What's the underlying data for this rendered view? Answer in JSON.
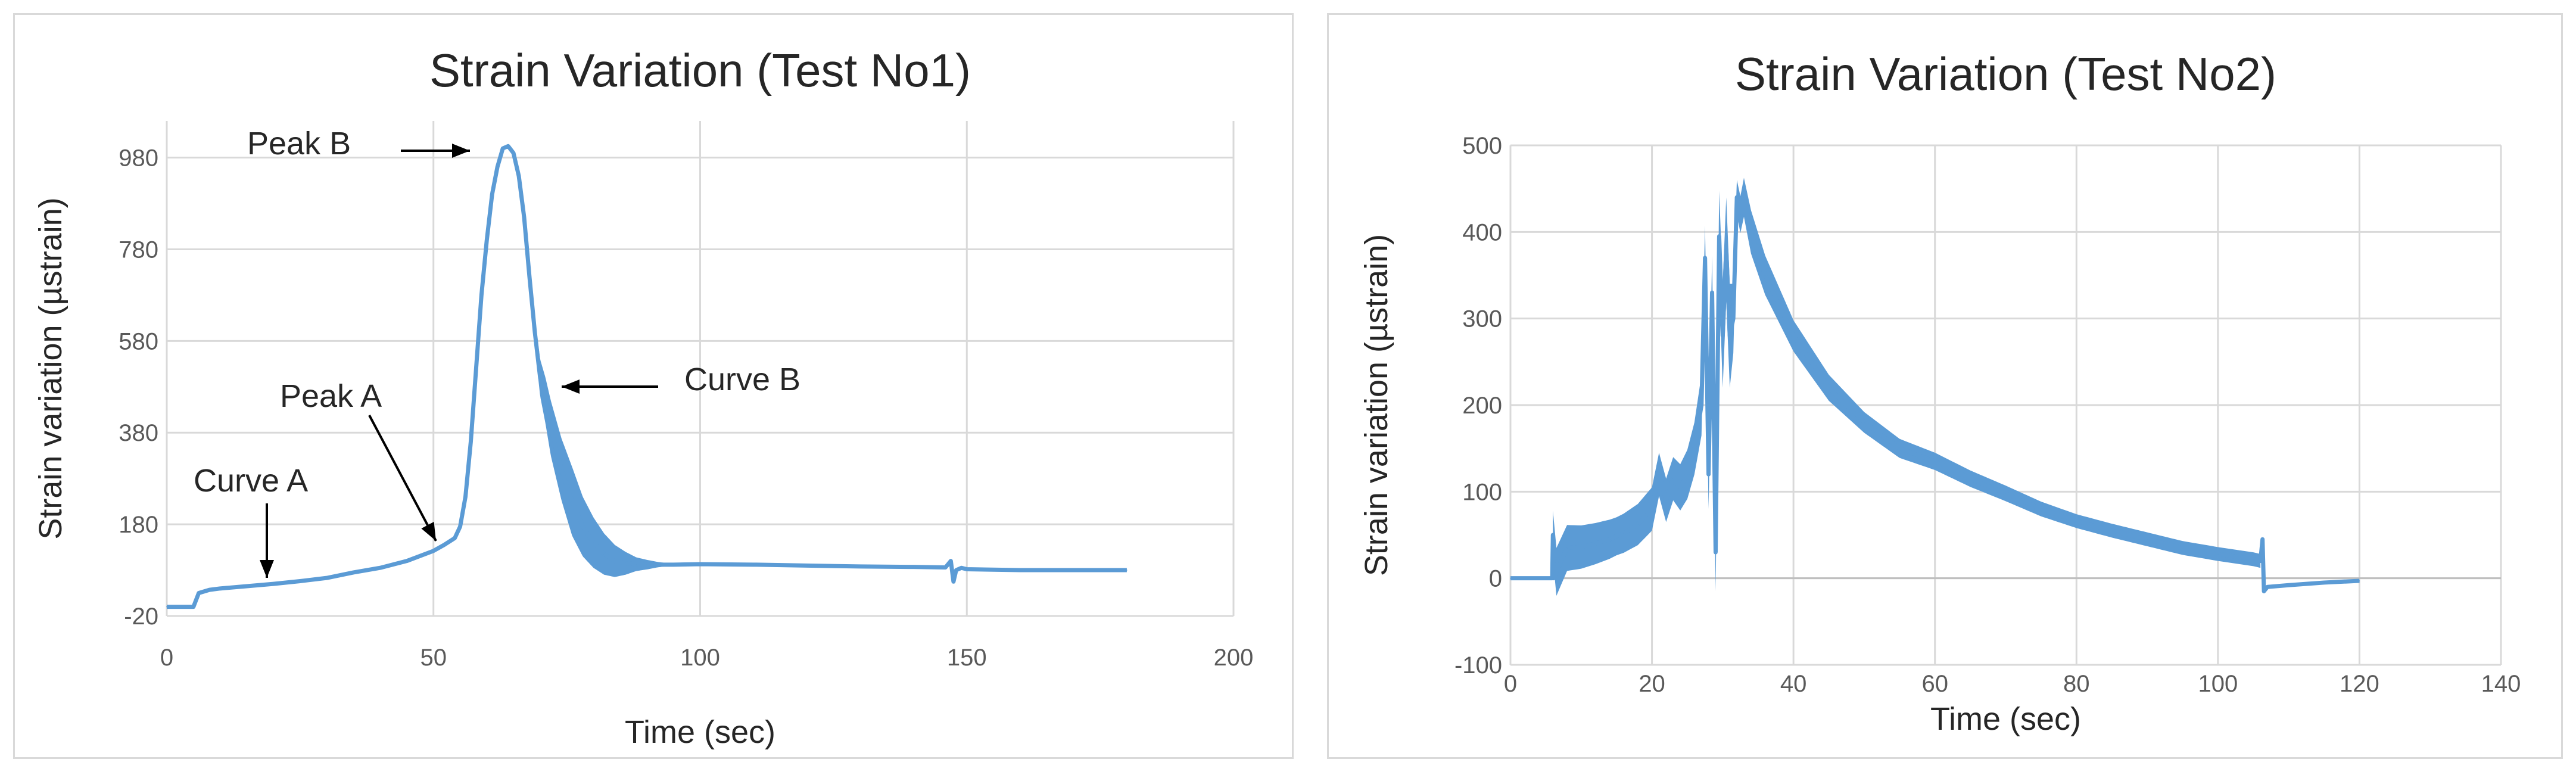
{
  "colors": {
    "series": "#5b9bd5",
    "grid": "#d9d9d9",
    "border": "#d9d9d9",
    "text": "#262626"
  },
  "chart_data": [
    {
      "type": "line",
      "title": "Strain Variation (Test No1)",
      "xlabel": "Time (sec)",
      "ylabel": "Strain variation (µstrain)",
      "xlim": [
        0,
        200
      ],
      "ylim": [
        -20,
        1060
      ],
      "xticks": [
        "0",
        "50",
        "100",
        "150",
        "200"
      ],
      "yticks": [
        "-20",
        "180",
        "380",
        "580",
        "780",
        "980"
      ],
      "grid": true,
      "legend": "none",
      "annotations": {
        "peak_a": "Peak A",
        "peak_b": "Peak B",
        "curve_a": "Curve A",
        "curve_b": "Curve B"
      },
      "series": [
        {
          "x": [
            0,
            5,
            6,
            8,
            10,
            15,
            20,
            25,
            30,
            35,
            40,
            45,
            50,
            52,
            54,
            55,
            56,
            57,
            58,
            59,
            60,
            61,
            62,
            63,
            64,
            65,
            66,
            67,
            68,
            69,
            70,
            71,
            72,
            74,
            76,
            78,
            80,
            82,
            84,
            86,
            88,
            90,
            95,
            100,
            110,
            120,
            130,
            140,
            146,
            147,
            147.5,
            148,
            149,
            150,
            160,
            170,
            180
          ],
          "y": [
            0,
            0,
            30,
            37,
            40,
            45,
            50,
            56,
            63,
            75,
            85,
            100,
            122,
            135,
            150,
            175,
            240,
            360,
            520,
            680,
            800,
            900,
            960,
            1000,
            1005,
            990,
            940,
            850,
            720,
            600,
            500,
            450,
            390,
            300,
            230,
            175,
            140,
            115,
            100,
            95,
            93,
            92,
            92,
            93,
            92,
            90,
            88,
            87,
            86,
            100,
            55,
            80,
            85,
            82,
            80,
            80,
            80
          ],
          "noise_band": {
            "x": [
              68,
              72,
              76,
              80,
              84,
              88,
              92,
              96
            ],
            "half_width": [
              20,
              60,
              75,
              55,
              35,
              15,
              6,
              0
            ]
          }
        }
      ]
    },
    {
      "type": "line",
      "title": "Strain Variation (Test No2)",
      "xlabel": "Time (sec)",
      "ylabel": "Strain variation (µstrain)",
      "xlim": [
        0,
        140
      ],
      "ylim": [
        -100,
        500
      ],
      "xticks": [
        "0",
        "20",
        "40",
        "60",
        "80",
        "100",
        "120",
        "140"
      ],
      "yticks": [
        "-100",
        "0",
        "100",
        "200",
        "300",
        "400",
        "500"
      ],
      "grid": true,
      "legend": "none",
      "series": [
        {
          "x": [
            0,
            5.9,
            6,
            6.1,
            8,
            10,
            12,
            14,
            16,
            18,
            20,
            21,
            22,
            23,
            24,
            25,
            26,
            27,
            27.5,
            28,
            28.5,
            29,
            29.5,
            30,
            30.5,
            31,
            31.5,
            32,
            32.5,
            33,
            34,
            36,
            38,
            40,
            45,
            50,
            55,
            60,
            65,
            70,
            75,
            80,
            85,
            90,
            95,
            100,
            105,
            106,
            106.3,
            106.5,
            107,
            110,
            115,
            120
          ],
          "y": [
            0,
            0,
            50,
            0,
            35,
            36,
            40,
            45,
            52,
            62,
            80,
            120,
            90,
            115,
            105,
            120,
            150,
            200,
            370,
            120,
            330,
            30,
            395,
            280,
            380,
            280,
            300,
            440,
            420,
            440,
            400,
            350,
            315,
            280,
            220,
            180,
            150,
            135,
            115,
            98,
            80,
            66,
            55,
            45,
            35,
            28,
            22,
            20,
            45,
            -15,
            -10,
            -8,
            -5,
            -3
          ],
          "noise_band": {
            "x": [
              6,
              10,
              15,
              20,
              23,
              26,
              29,
              30,
              31,
              32,
              34,
              40,
              50,
              60,
              80,
              100,
              106
            ],
            "half_width": [
              28,
              25,
              22,
              25,
              25,
              30,
              45,
              60,
              60,
              20,
              25,
              18,
              12,
              10,
              8,
              8,
              8
            ]
          }
        }
      ]
    }
  ]
}
